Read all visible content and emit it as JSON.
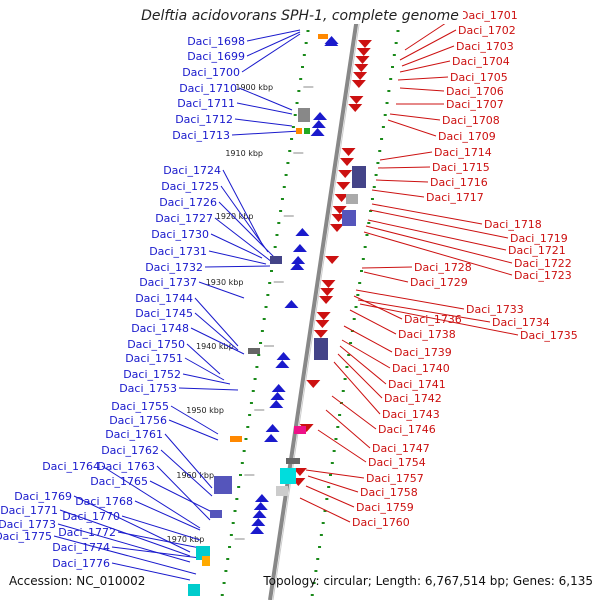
{
  "header": {
    "title": "Delftia acidovorans SPH-1, complete genome"
  },
  "footer": {
    "accession": "Accession: NC_010002",
    "summary": "Topology: circular; Length: 6,767,514 bp; Genes: 6,135"
  },
  "colors": {
    "left_strand": "#1a1acc",
    "right_strand": "#cc1111",
    "backbone": "#888888",
    "tick": "#1a8a1a"
  },
  "scale_labels": [
    "1900 kbp",
    "1910 kbp",
    "1920 kbp",
    "1930 kbp",
    "1940 kbp",
    "1950 kbp",
    "1960 kbp",
    "1970 kbp"
  ],
  "left_genes": [
    "Daci_1698",
    "Daci_1699",
    "Daci_1700",
    "Daci_1710",
    "Daci_1711",
    "Daci_1712",
    "Daci_1713",
    "Daci_1724",
    "Daci_1725",
    "Daci_1726",
    "Daci_1727",
    "Daci_1730",
    "Daci_1731",
    "Daci_1732",
    "Daci_1737",
    "Daci_1744",
    "Daci_1745",
    "Daci_1748",
    "Daci_1750",
    "Daci_1751",
    "Daci_1752",
    "Daci_1753",
    "Daci_1755",
    "Daci_1756",
    "Daci_1761",
    "Daci_1762",
    "Daci_1764",
    "Daci_1763",
    "Daci_1765",
    "Daci_1769",
    "Daci_1768",
    "Daci_1771",
    "Daci_1770",
    "Daci_1773",
    "Daci_1772",
    "Daci_1775",
    "Daci_1774",
    "Daci_1776"
  ],
  "right_genes": [
    "Daci_1701",
    "Daci_1702",
    "Daci_1703",
    "Daci_1704",
    "Daci_1705",
    "Daci_1706",
    "Daci_1707",
    "Daci_1708",
    "Daci_1709",
    "Daci_1714",
    "Daci_1715",
    "Daci_1716",
    "Daci_1717",
    "Daci_1718",
    "Daci_1719",
    "Daci_1721",
    "Daci_1722",
    "Daci_1723",
    "Daci_1728",
    "Daci_1729",
    "Daci_1733",
    "Daci_1736",
    "Daci_1734",
    "Daci_1738",
    "Daci_1735",
    "Daci_1739",
    "Daci_1740",
    "Daci_1741",
    "Daci_1742",
    "Daci_1743",
    "Daci_1746",
    "Daci_1747",
    "Daci_1754",
    "Daci_1757",
    "Daci_1758",
    "Daci_1759",
    "Daci_1760"
  ]
}
